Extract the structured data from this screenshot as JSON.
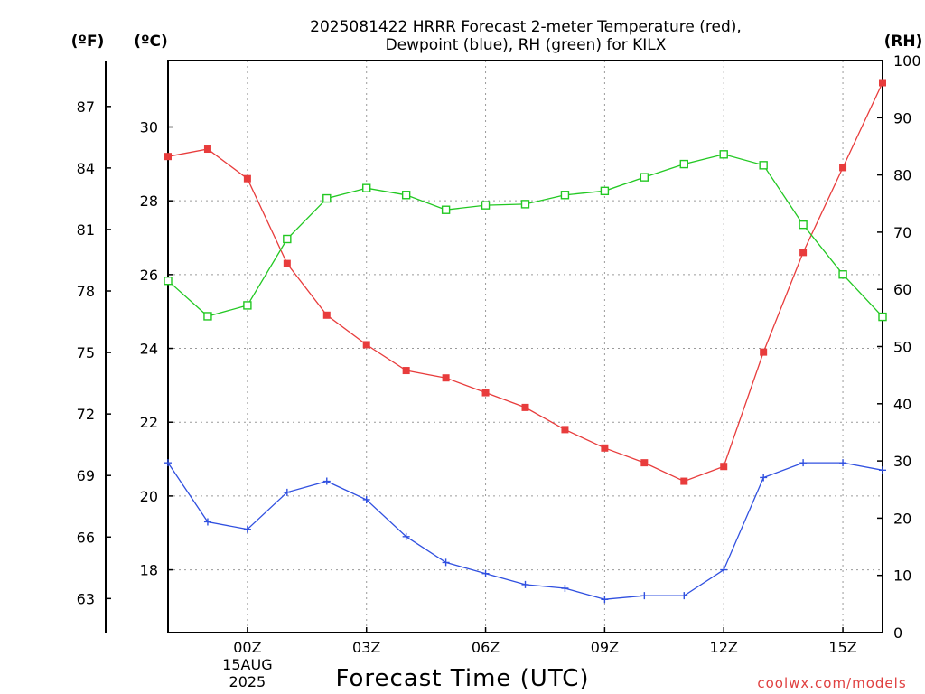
{
  "chart_data": {
    "type": "line",
    "title_line1": "2025081422 HRRR Forecast 2-meter Temperature (red),",
    "title_line2": "Dewpoint (blue), RH (green) for KILX",
    "xlabel": "Forecast Time (UTC)",
    "credit": "coolwx.com/models",
    "units": {
      "fahrenheit": "(ºF)",
      "celsius": "(ºC)",
      "rh": "(RH)"
    },
    "x_hours": [
      -2,
      -1,
      0,
      1,
      2,
      3,
      4,
      5,
      6,
      7,
      8,
      9,
      10,
      11,
      12,
      13,
      14,
      15,
      16
    ],
    "x_ticks": [
      {
        "hour": 0,
        "label": "00Z",
        "sub1": "15AUG",
        "sub2": "2025"
      },
      {
        "hour": 3,
        "label": "03Z"
      },
      {
        "hour": 6,
        "label": "06Z"
      },
      {
        "hour": 9,
        "label": "09Z"
      },
      {
        "hour": 12,
        "label": "12Z"
      },
      {
        "hour": 15,
        "label": "15Z"
      }
    ],
    "xlim": [
      -2,
      16
    ],
    "celsius_axis": {
      "lim": [
        16.3,
        31.8
      ],
      "ticks": [
        "18",
        "20",
        "22",
        "24",
        "26",
        "28",
        "30"
      ]
    },
    "fahrenheit_axis": {
      "ticks": [
        "63",
        "66",
        "69",
        "72",
        "75",
        "78",
        "81",
        "84",
        "87"
      ]
    },
    "rh_axis": {
      "lim": [
        0,
        100
      ],
      "ticks": [
        "0",
        "10",
        "20",
        "30",
        "40",
        "50",
        "60",
        "70",
        "80",
        "90",
        "100"
      ]
    },
    "series": [
      {
        "name": "Temperature",
        "axis": "celsius",
        "color": "#e83c3c",
        "marker": "filled-square",
        "values": [
          29.2,
          29.4,
          28.6,
          26.3,
          24.9,
          24.1,
          23.4,
          23.2,
          22.8,
          22.4,
          21.8,
          21.3,
          20.9,
          20.4,
          20.8,
          23.9,
          26.6,
          28.9,
          31.2
        ]
      },
      {
        "name": "Dewpoint",
        "axis": "celsius",
        "color": "#3050e0",
        "marker": "plus",
        "values": [
          20.9,
          19.3,
          19.1,
          20.1,
          20.4,
          19.9,
          18.9,
          18.2,
          17.9,
          17.6,
          17.5,
          17.2,
          17.3,
          17.3,
          18.0,
          20.5,
          20.9,
          20.9,
          20.7
        ]
      },
      {
        "name": "RH",
        "axis": "rh",
        "color": "#22c822",
        "marker": "open-square",
        "values": [
          61.5,
          55.3,
          57.2,
          68.8,
          75.9,
          77.7,
          76.5,
          73.9,
          74.7,
          74.9,
          76.5,
          77.2,
          79.6,
          81.9,
          83.6,
          81.7,
          71.3,
          62.6,
          55.2
        ]
      }
    ]
  }
}
